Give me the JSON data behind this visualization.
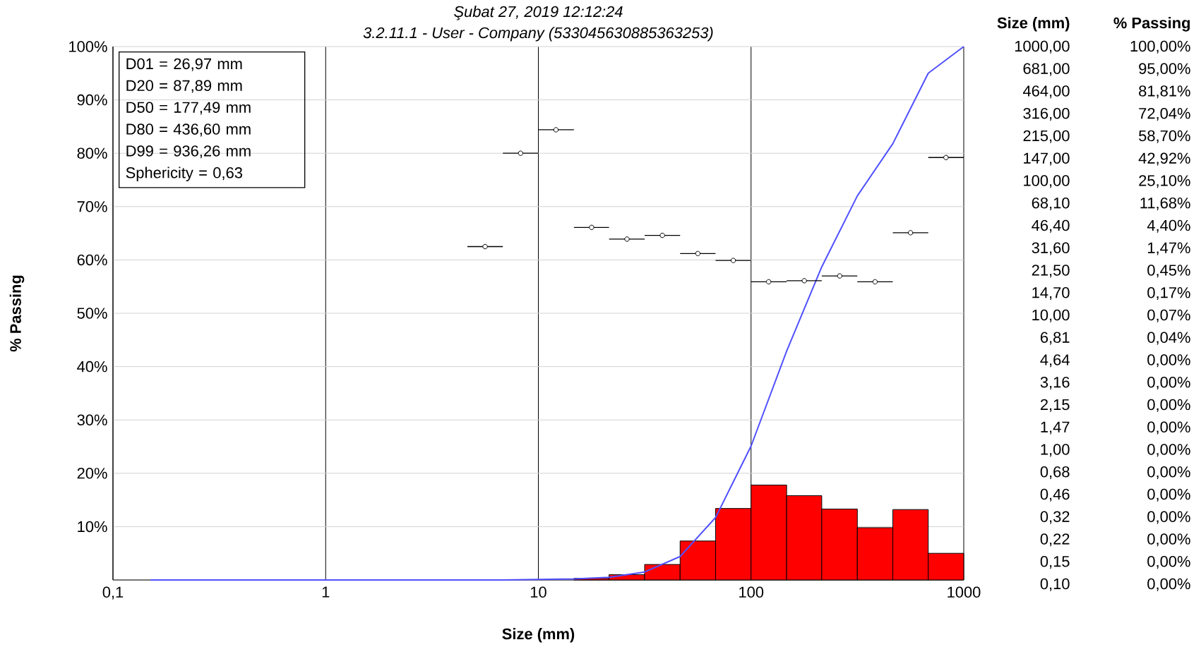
{
  "chart_data": [
    {
      "type": "histogram",
      "title": "Şubat 27, 2019 12:12:24",
      "subtitle": "3.2.11.1  -  User - Company (533045630885363253)",
      "xlabel": "Size (mm)",
      "ylabel": "% Passing",
      "log": "x",
      "grid": true,
      "xlim": [
        0.1,
        1000
      ],
      "ylim": [
        0,
        100
      ],
      "xticks": [
        {
          "value": 0.1,
          "label": "0,1"
        },
        1,
        10,
        100,
        1000
      ],
      "yticks": [
        {
          "value": 0,
          "label": null
        },
        {
          "value": 10,
          "label": "10%"
        },
        {
          "value": 20,
          "label": "20%"
        },
        {
          "value": 30,
          "label": "30%"
        },
        {
          "value": 40,
          "label": "40%"
        },
        {
          "value": 50,
          "label": "50%"
        },
        {
          "value": 60,
          "label": "60%"
        },
        {
          "value": 70,
          "label": "70%"
        },
        {
          "value": 80,
          "label": "80%"
        },
        {
          "value": 90,
          "label": "90%"
        },
        {
          "value": 100,
          "label": "100%"
        }
      ],
      "series": [
        {
          "color": "#ff0000",
          "bins": [
            14.7,
            21.5,
            31.6,
            46.4,
            68.1,
            100,
            147,
            215,
            316,
            464,
            681,
            1000
          ],
          "values": [
            0.3,
            1,
            2.9,
            7.3,
            13.4,
            17.8,
            15.8,
            13.3,
            9.8,
            13.2,
            5
          ]
        },
        {
          "type": "line",
          "color": "#5050ff",
          "x": [
            1000,
            681,
            464,
            316,
            215,
            147,
            100,
            68.1,
            46.4,
            31.6,
            21.5,
            14.7,
            10,
            6.81,
            4.64,
            3.16,
            2.15,
            1.47,
            1,
            0.68,
            0.46,
            0.32,
            0.22,
            0.15
          ],
          "values": [
            100,
            95,
            81.8,
            72,
            58.7,
            42.9,
            25.1,
            11.7,
            4.4,
            1.5,
            0.5,
            0.2,
            0.1,
            0,
            0,
            0,
            0,
            0,
            0,
            0,
            0,
            0,
            0,
            0
          ]
        },
        {
          "type": "scatter",
          "color": "#000000",
          "marker": "circle",
          "x": [
            5.62,
            8.25,
            12.1,
            17.8,
            26.1,
            38.3,
            56.2,
            82.5,
            121,
            178,
            261,
            383,
            562,
            825
          ],
          "values": [
            62.5,
            80,
            84.4,
            66.1,
            63.9,
            64.6,
            61.2,
            59.9,
            55.9,
            56.1,
            57,
            55.9,
            65.1,
            79.2
          ],
          "xerrors": [
            [
              4.64,
              6.81
            ],
            [
              6.81,
              10
            ],
            [
              10,
              14.7
            ],
            [
              14.7,
              21.5
            ],
            [
              21.5,
              31.6
            ],
            [
              31.6,
              46.4
            ],
            [
              46.4,
              68.1
            ],
            [
              68.1,
              100
            ],
            [
              100,
              147
            ],
            [
              147,
              215
            ],
            [
              215,
              316
            ],
            [
              316,
              464
            ],
            [
              464,
              681
            ],
            [
              681,
              1000
            ]
          ]
        }
      ],
      "annotations": [
        "D01 = 26,97 mm",
        "D20 = 87,89 mm",
        "D50 = 177,49 mm",
        "D80 = 436,60 mm",
        "D99 = 936,26 mm",
        "Sphericity = 0,63"
      ]
    },
    {
      "type": "other",
      "annotations": [
        "Size (mm)",
        "% Passing",
        "1000,00",
        "100,00%",
        "681,00",
        "95,00%",
        "464,00",
        "81,81%",
        "316,00",
        "72,04%",
        "215,00",
        "58,70%",
        "147,00",
        "42,92%",
        "100,00",
        "25,10%",
        "68,10",
        "11,68%",
        "46,40",
        "4,40%",
        "31,60",
        "1,47%",
        "21,50",
        "0,45%",
        "14,70",
        "0,17%",
        "10,00",
        "0,07%",
        "6,81",
        "0,04%",
        "4,64",
        "0,00%",
        "3,16",
        "0,00%",
        "2,15",
        "0,00%",
        "1,47",
        "0,00%",
        "1,00",
        "0,00%",
        "0,68",
        "0,00%",
        "0,46",
        "0,00%",
        "0,32",
        "0,00%",
        "0,22",
        "0,00%",
        "0,15",
        "0,00%",
        "0,10",
        "0,00%"
      ]
    }
  ]
}
